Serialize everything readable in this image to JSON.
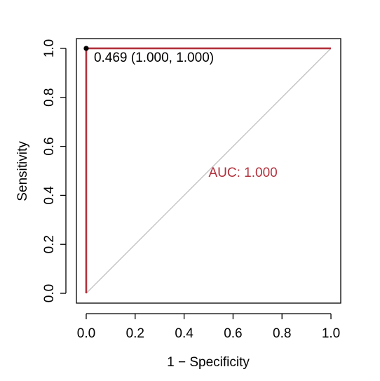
{
  "chart_data": {
    "type": "line",
    "title": "",
    "xlabel": "1 − Specificity",
    "ylabel": "Sensitivity",
    "xlim": [
      -0.04,
      1.04
    ],
    "ylim": [
      -0.04,
      1.04
    ],
    "x_ticks": [
      0.0,
      0.2,
      0.4,
      0.6,
      0.8,
      1.0
    ],
    "x_tick_labels": [
      "0.0",
      "0.2",
      "0.4",
      "0.6",
      "0.8",
      "1.0"
    ],
    "y_ticks": [
      0.0,
      0.2,
      0.4,
      0.6,
      0.8,
      1.0
    ],
    "y_tick_labels": [
      "0.0",
      "0.2",
      "0.4",
      "0.6",
      "0.8",
      "1.0"
    ],
    "grid": false,
    "series": [
      {
        "x": [
          0.0,
          0.0,
          1.0
        ],
        "y": [
          0.0,
          1.0,
          1.0
        ],
        "color": "#b2313c"
      }
    ],
    "reference_line": {
      "x": [
        0.0,
        1.0
      ],
      "y": [
        0.0,
        1.0
      ],
      "color": "#bebebe"
    },
    "threshold_point": {
      "x": 0.0,
      "y": 1.0,
      "label": "0.469 (1.000, 1.000)"
    },
    "auc_label": {
      "text": "AUC: 1.000",
      "color": "#b2313c"
    }
  }
}
